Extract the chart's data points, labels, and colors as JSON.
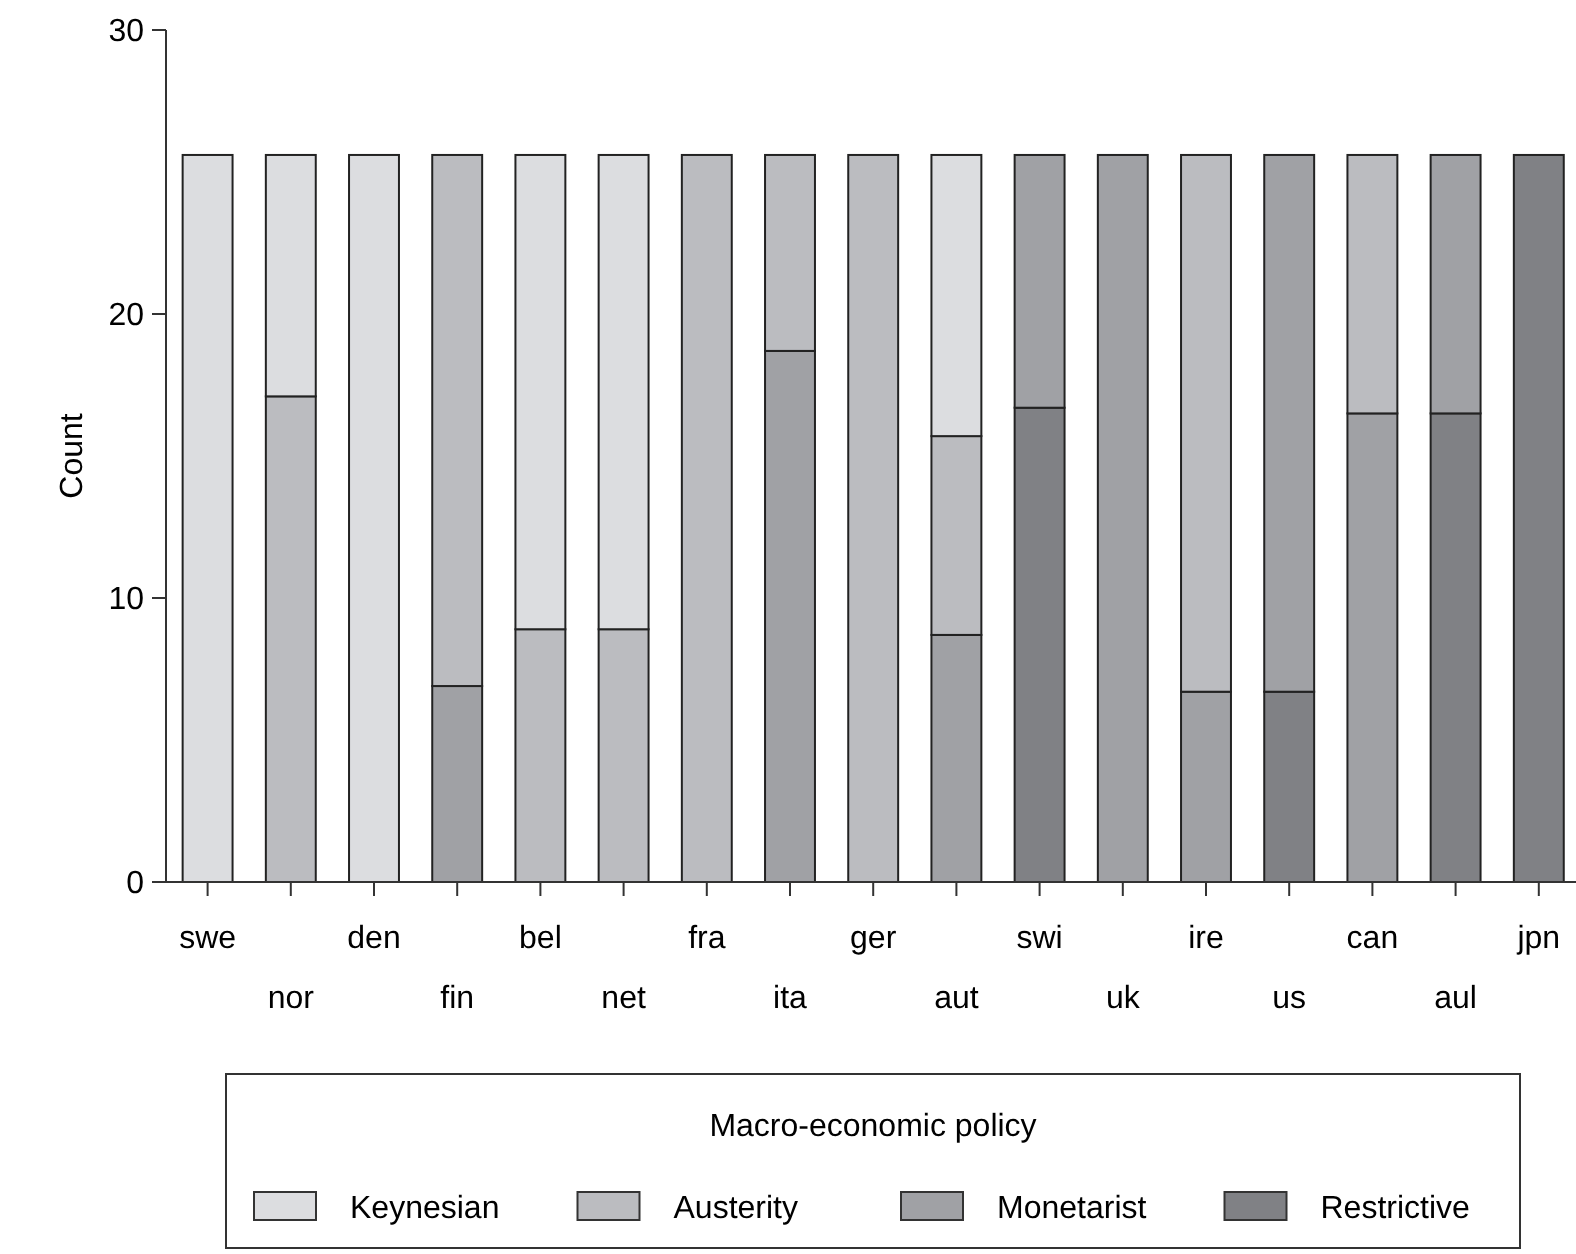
{
  "chart_data": {
    "type": "bar",
    "stacked": true,
    "ylabel": "Count",
    "legend_title": "Macro-economic policy",
    "legend": "bottom",
    "categories": [
      "swe",
      "nor",
      "den",
      "fin",
      "bel",
      "net",
      "fra",
      "ita",
      "ger",
      "aut",
      "swi",
      "uk",
      "ire",
      "us",
      "can",
      "aul",
      "jpn"
    ],
    "ylim": [
      0,
      30
    ],
    "yticks": [
      0,
      10,
      20,
      30
    ],
    "series": [
      {
        "name": "Restrictive",
        "color": "#808185",
        "values": [
          0,
          0,
          0,
          0,
          0,
          0,
          0,
          0,
          0,
          0,
          16.7,
          0,
          0,
          6.7,
          0,
          16.5,
          25.6
        ]
      },
      {
        "name": "Monetarist",
        "color": "#a0a1a5",
        "values": [
          0,
          0,
          0,
          6.9,
          0,
          0,
          0,
          18.7,
          0,
          8.7,
          8.9,
          25.6,
          6.7,
          18.9,
          16.5,
          9.1,
          0
        ]
      },
      {
        "name": "Austerity",
        "color": "#bbbcc0",
        "values": [
          0,
          17.1,
          0,
          18.7,
          8.9,
          8.9,
          25.6,
          6.9,
          25.6,
          7.0,
          0,
          0,
          18.9,
          0,
          9.1,
          0,
          0
        ]
      },
      {
        "name": "Keynesian",
        "color": "#dcdde0",
        "values": [
          25.6,
          8.5,
          25.6,
          0,
          16.7,
          16.7,
          0,
          0,
          0,
          9.9,
          0,
          0,
          0,
          0,
          0,
          0,
          0
        ]
      }
    ]
  }
}
